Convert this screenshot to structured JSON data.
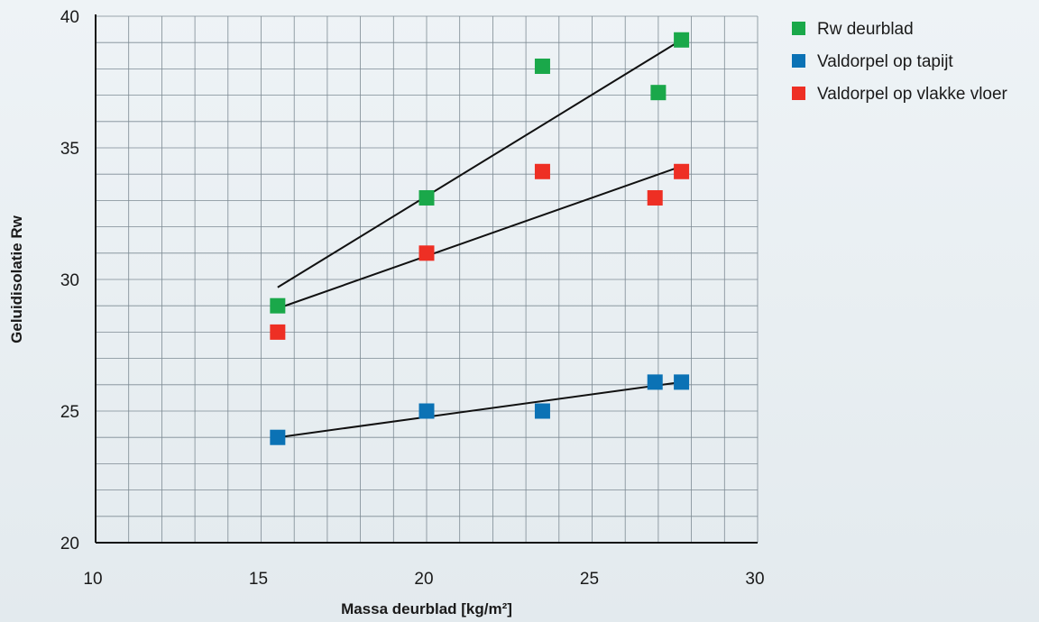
{
  "chart_data": {
    "type": "scatter",
    "title": "",
    "xlabel": "Massa deurblad [kg/m²]",
    "ylabel": "Geluidisolatie Rw",
    "xlim": [
      10,
      30
    ],
    "ylim": [
      20,
      40
    ],
    "x_ticks": [
      "10",
      "15",
      "20",
      "25",
      "30"
    ],
    "y_ticks": [
      "20",
      "25",
      "30",
      "35",
      "40"
    ],
    "grid": true,
    "legend_position": "top-right, outside plot",
    "series": [
      {
        "name": "Rw deurblad",
        "color": "#1aa84a",
        "marker": "square",
        "points": [
          {
            "x": 15.5,
            "y": 29
          },
          {
            "x": 20,
            "y": 33.1
          },
          {
            "x": 23.5,
            "y": 38.1
          },
          {
            "x": 27,
            "y": 37.1
          },
          {
            "x": 27.7,
            "y": 39.1
          }
        ],
        "trendline": [
          {
            "x": 15.5,
            "y": 29.7
          },
          {
            "x": 27.7,
            "y": 39.1
          }
        ]
      },
      {
        "name": "Valdorpel op tapijt",
        "color": "#0b72b5",
        "marker": "square",
        "points": [
          {
            "x": 15.5,
            "y": 24
          },
          {
            "x": 20,
            "y": 25
          },
          {
            "x": 23.5,
            "y": 25
          },
          {
            "x": 26.9,
            "y": 26.1
          },
          {
            "x": 27.7,
            "y": 26.1
          }
        ],
        "trendline": [
          {
            "x": 15.5,
            "y": 24
          },
          {
            "x": 27.7,
            "y": 26.1
          }
        ]
      },
      {
        "name": "Valdorpel op vlakke vloer",
        "color": "#ee2f24",
        "marker": "square",
        "points": [
          {
            "x": 15.5,
            "y": 28
          },
          {
            "x": 20,
            "y": 31
          },
          {
            "x": 23.5,
            "y": 34.1
          },
          {
            "x": 26.9,
            "y": 33.1
          },
          {
            "x": 27.7,
            "y": 34.1
          }
        ],
        "trendline": [
          {
            "x": 15.5,
            "y": 28.9
          },
          {
            "x": 27.7,
            "y": 34.3
          }
        ]
      }
    ]
  }
}
